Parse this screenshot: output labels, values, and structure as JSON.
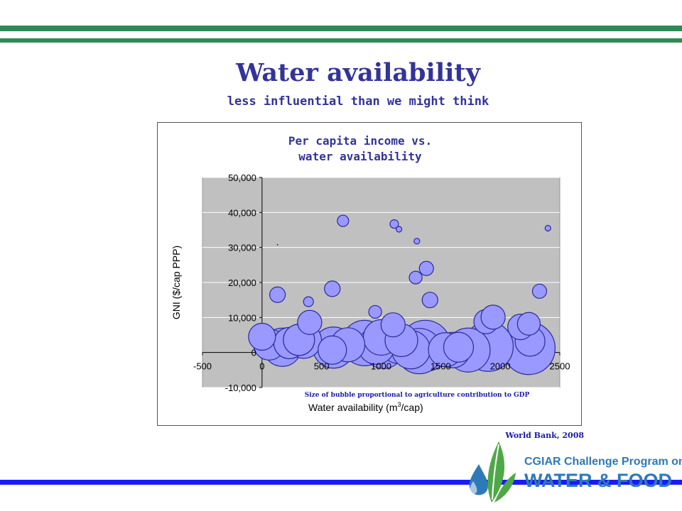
{
  "colors": {
    "green_stripe": "#2e8b57",
    "blue_stripe": "#1a1aff",
    "title": "#33339a",
    "plot_bg": "#c0c0c0",
    "bubble_fill": "#9999ff",
    "bubble_stroke": "#2b2b9c",
    "bubble_note": "#1a1aaa",
    "source_note": "#1a1aaa",
    "logo_blue": "#2e79b8",
    "logo_green": "#4fa847"
  },
  "slide": {
    "title": "Water availability",
    "subtitle": "less influential than we might think",
    "source": "World Bank, 2008"
  },
  "logo": {
    "line1": "CGIAR Challenge Program on",
    "line2": "WATER & FOOD",
    "icon": "water-drop-leaf-icon"
  },
  "chart_data": {
    "type": "scatter",
    "variant": "bubble",
    "title_line1": "Per capita income vs.",
    "title_line2": "water availability",
    "xlabel_main": "Water availability (m",
    "xlabel_sup": "3",
    "xlabel_end": "/cap)",
    "ylabel": "GNI ($/cap PPP)",
    "note": "Size of bubble proportional to agriculture contribution to GDP",
    "xlim": [
      -500,
      2500
    ],
    "ylim": [
      -10000,
      50000
    ],
    "x_ticks": [
      -500,
      0,
      500,
      1000,
      1500,
      2000,
      2500
    ],
    "y_ticks": [
      -10000,
      0,
      10000,
      20000,
      30000,
      40000,
      50000
    ],
    "x_tick_labels": [
      "-500",
      "0",
      "500",
      "1000",
      "1500",
      "2000",
      "2500"
    ],
    "y_tick_labels": [
      "-10,000",
      "0",
      "10,000",
      "20,000",
      "30,000",
      "40,000",
      "50,000"
    ],
    "grid": "horizontal",
    "legend": "none",
    "points": [
      {
        "x": 130,
        "y": 16500,
        "size": 11
      },
      {
        "x": 390,
        "y": 14500,
        "size": 7
      },
      {
        "x": 590,
        "y": 18200,
        "size": 11
      },
      {
        "x": 680,
        "y": 37600,
        "size": 8
      },
      {
        "x": 1110,
        "y": 36700,
        "size": 6
      },
      {
        "x": 1150,
        "y": 35200,
        "size": 4
      },
      {
        "x": 1300,
        "y": 31800,
        "size": 4
      },
      {
        "x": 1380,
        "y": 24000,
        "size": 10
      },
      {
        "x": 1290,
        "y": 21400,
        "size": 9
      },
      {
        "x": 1410,
        "y": 15000,
        "size": 11
      },
      {
        "x": 950,
        "y": 11600,
        "size": 9
      },
      {
        "x": 2400,
        "y": 35500,
        "size": 4
      },
      {
        "x": 2330,
        "y": 17500,
        "size": 10
      },
      {
        "x": 2240,
        "y": 8200,
        "size": 16
      },
      {
        "x": 1880,
        "y": 8800,
        "size": 17
      },
      {
        "x": 1940,
        "y": 10100,
        "size": 17
      },
      {
        "x": 2170,
        "y": 7300,
        "size": 18
      },
      {
        "x": 400,
        "y": 8600,
        "size": 17
      },
      {
        "x": 1100,
        "y": 7900,
        "size": 17
      },
      {
        "x": 0,
        "y": 4500,
        "size": 19
      },
      {
        "x": 60,
        "y": 2300,
        "size": 22
      },
      {
        "x": 170,
        "y": 1500,
        "size": 27
      },
      {
        "x": 230,
        "y": 2700,
        "size": 22
      },
      {
        "x": 310,
        "y": 3600,
        "size": 22
      },
      {
        "x": 350,
        "y": 3400,
        "size": 25
      },
      {
        "x": 600,
        "y": 1400,
        "size": 29
      },
      {
        "x": 590,
        "y": 700,
        "size": 20
      },
      {
        "x": 720,
        "y": 2200,
        "size": 24
      },
      {
        "x": 860,
        "y": 2700,
        "size": 32
      },
      {
        "x": 960,
        "y": 1900,
        "size": 26
      },
      {
        "x": 1000,
        "y": 4300,
        "size": 25
      },
      {
        "x": 1020,
        "y": 1300,
        "size": 29
      },
      {
        "x": 1150,
        "y": 2300,
        "size": 27
      },
      {
        "x": 1170,
        "y": 3500,
        "size": 23
      },
      {
        "x": 1250,
        "y": 800,
        "size": 27
      },
      {
        "x": 1320,
        "y": 400,
        "size": 32
      },
      {
        "x": 1370,
        "y": 1900,
        "size": 36
      },
      {
        "x": 1540,
        "y": 800,
        "size": 24
      },
      {
        "x": 1600,
        "y": 700,
        "size": 25
      },
      {
        "x": 1650,
        "y": 1500,
        "size": 21
      },
      {
        "x": 1730,
        "y": 700,
        "size": 31
      },
      {
        "x": 1900,
        "y": 1700,
        "size": 35
      },
      {
        "x": 2240,
        "y": 1200,
        "size": 37
      },
      {
        "x": 2250,
        "y": 3200,
        "size": 21
      },
      {
        "x": 130,
        "y": 30800,
        "size": 0.6
      }
    ]
  }
}
